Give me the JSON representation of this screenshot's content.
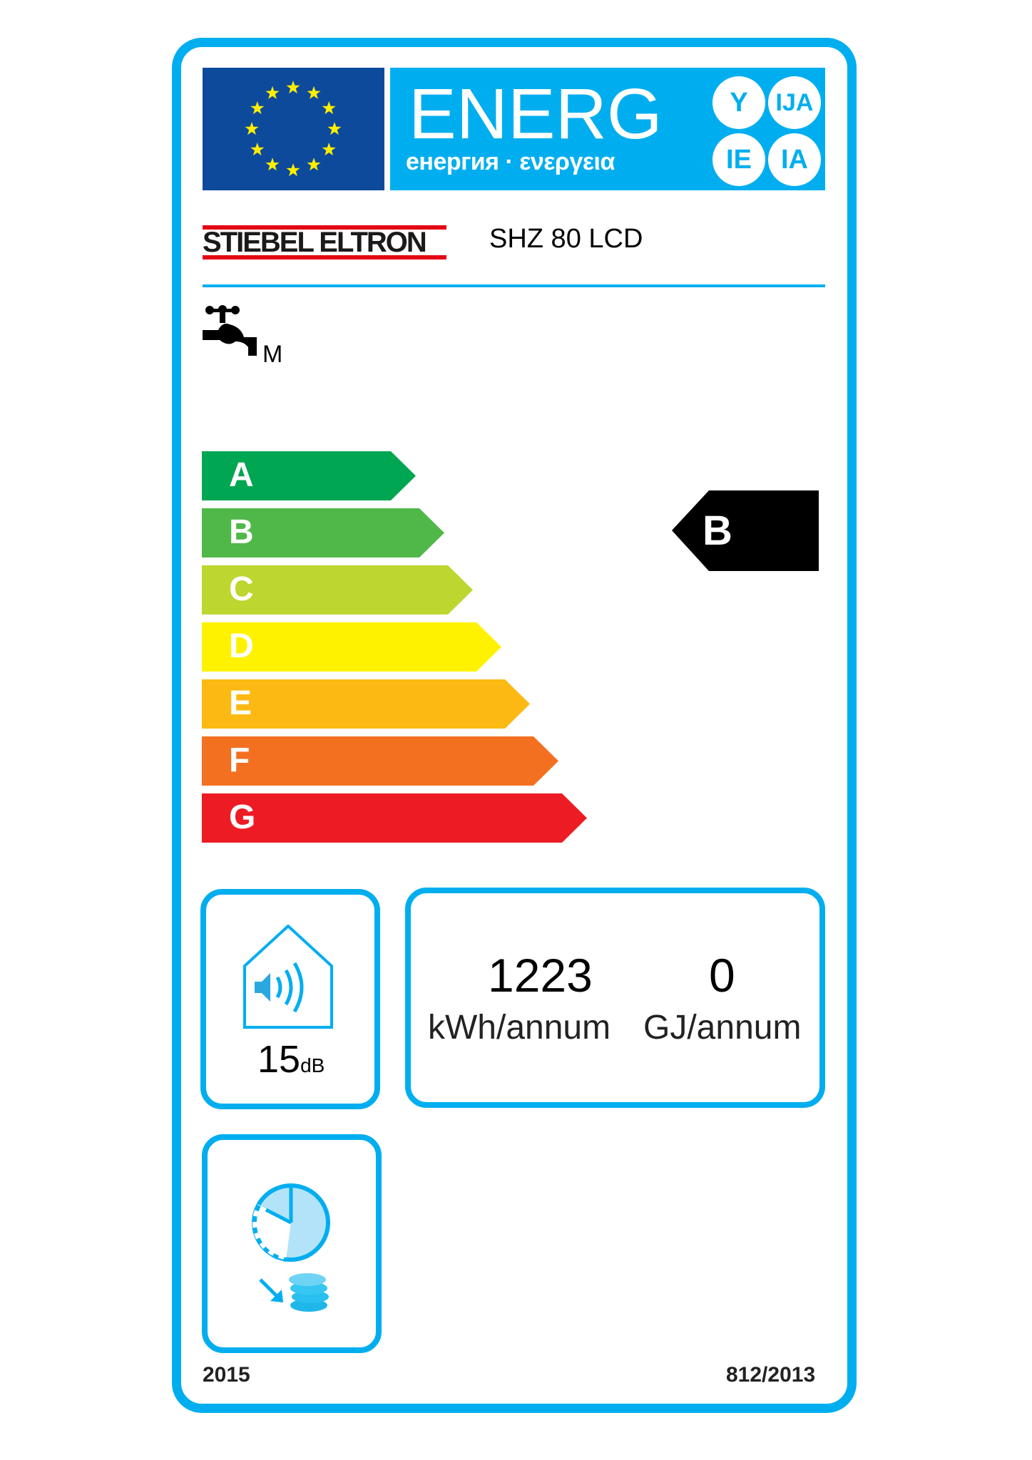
{
  "header": {
    "energy_word": "ENERG",
    "energy_subtitle": "енергия · ενεργεια",
    "language_suffixes": [
      "Y",
      "IJA",
      "IE",
      "IA"
    ]
  },
  "supplier": {
    "brand": "STIEBEL ELTRON",
    "model": "SHZ 80 LCD"
  },
  "load_profile": "M",
  "scale": {
    "classes": [
      {
        "letter": "A",
        "color": "#00a651"
      },
      {
        "letter": "B",
        "color": "#50b848"
      },
      {
        "letter": "C",
        "color": "#bed630"
      },
      {
        "letter": "D",
        "color": "#fff200"
      },
      {
        "letter": "E",
        "color": "#fdb913"
      },
      {
        "letter": "F",
        "color": "#f37021"
      },
      {
        "letter": "G",
        "color": "#ed1c24"
      }
    ],
    "rating": "B"
  },
  "noise": {
    "value": "15",
    "unit": "dB"
  },
  "consumption": {
    "electricity_value": "1223",
    "electricity_unit": "kWh/annum",
    "fuel_value": "0",
    "fuel_unit": "GJ/annum"
  },
  "footer": {
    "year": "2015",
    "regulation": "812/2013"
  },
  "colors": {
    "frame": "#00aeef",
    "eu_blue": "#0d4a9c",
    "eu_star": "#ffed00"
  }
}
